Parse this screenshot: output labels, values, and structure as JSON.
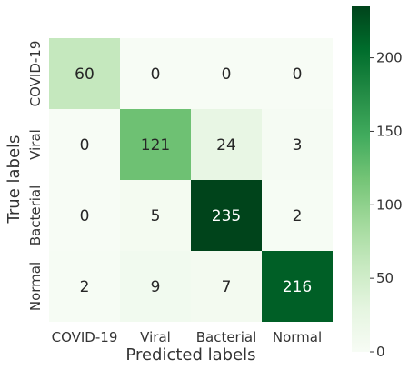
{
  "chart_data": {
    "type": "heatmap",
    "title": "",
    "xlabel": "Predicted labels",
    "ylabel": "True labels",
    "x_categories": [
      "COVID-19",
      "Viral",
      "Bacterial",
      "Normal"
    ],
    "y_categories": [
      "COVID-19",
      "Viral",
      "Bacterial",
      "Normal"
    ],
    "values": [
      [
        60,
        0,
        0,
        0
      ],
      [
        0,
        121,
        24,
        3
      ],
      [
        0,
        5,
        235,
        2
      ],
      [
        2,
        9,
        7,
        216
      ]
    ],
    "colormap": "Greens",
    "vmin": 0,
    "vmax": 235,
    "colorbar_ticks": [
      0,
      50,
      100,
      150,
      200
    ],
    "colors": {
      "low": "#f7fcf5",
      "high": "#00441b",
      "text_dark": "#262626",
      "text_light": "#ffffff"
    }
  }
}
